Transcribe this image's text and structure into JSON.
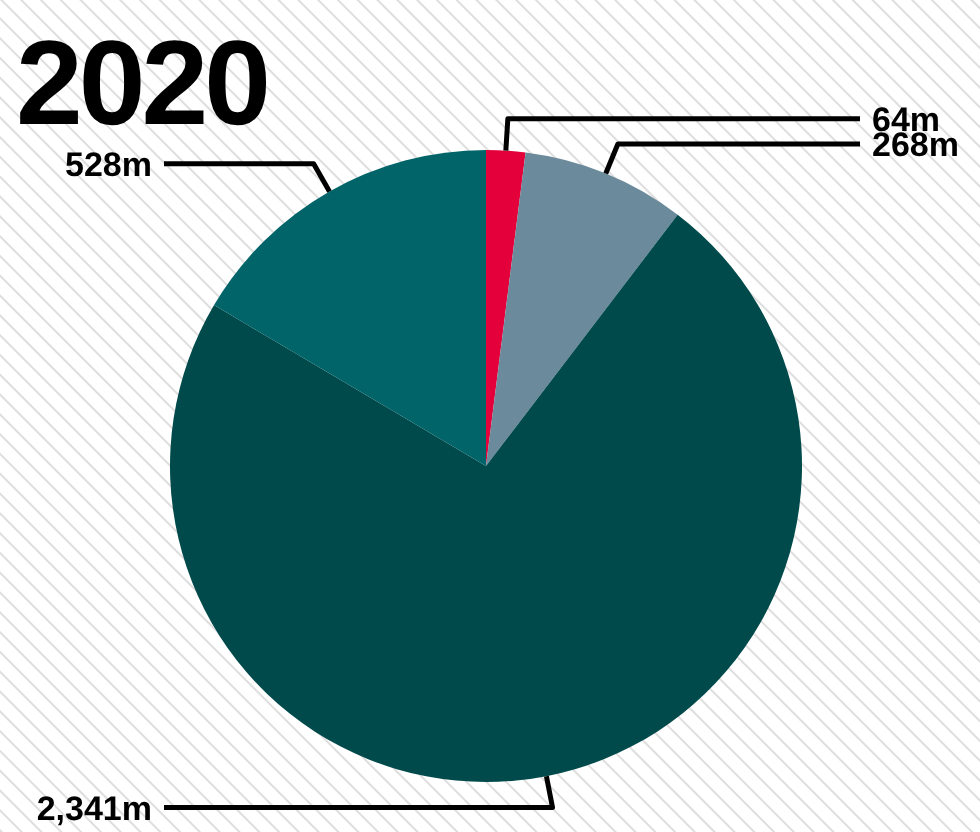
{
  "chart_data": {
    "type": "pie",
    "title": "2020",
    "categories": [
      null,
      null,
      null,
      null
    ],
    "values": [
      64,
      268,
      2341,
      528
    ],
    "value_labels": [
      "64m",
      "268m",
      "2,341m",
      "528m"
    ],
    "colors": [
      "#e4003b",
      "#6b8a9b",
      "#004a4b",
      "#006469"
    ]
  }
}
